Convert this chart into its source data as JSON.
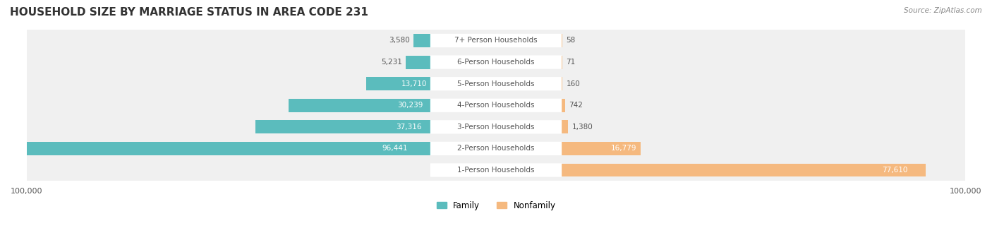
{
  "title": "HOUSEHOLD SIZE BY MARRIAGE STATUS IN AREA CODE 231",
  "source": "Source: ZipAtlas.com",
  "categories": [
    "7+ Person Households",
    "6-Person Households",
    "5-Person Households",
    "4-Person Households",
    "3-Person Households",
    "2-Person Households",
    "1-Person Households"
  ],
  "family_values": [
    3580,
    5231,
    13710,
    30239,
    37316,
    96441,
    0
  ],
  "nonfamily_values": [
    58,
    71,
    160,
    742,
    1380,
    16779,
    77610
  ],
  "family_color": "#5bbcbd",
  "nonfamily_color": "#f5b97f",
  "axis_max": 100000,
  "bar_bg_color": "#e8e8e8",
  "row_bg_color": "#f0f0f0",
  "label_color": "#555555",
  "title_color": "#333333",
  "source_color": "#888888",
  "legend_labels": [
    "Family",
    "Nonfamily"
  ],
  "figsize": [
    14.06,
    3.4
  ],
  "dpi": 100
}
